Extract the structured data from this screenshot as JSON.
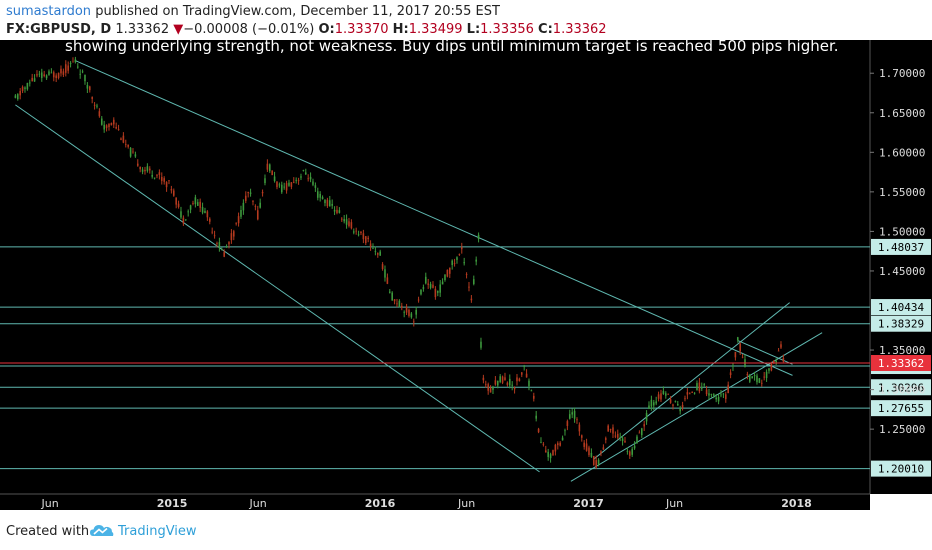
{
  "header": {
    "publisher": "sumastardon",
    "published_text": "published on TradingView.com, December 11, 2017 20:55 EST",
    "symbol": "FX:GBPUSD, D",
    "last": "1.33362",
    "change_arrow": "▼",
    "change": "−0.00008 (−0.01%)",
    "open_label": "O:",
    "open": "1.33370",
    "high_label": "H:",
    "high": "1.33499",
    "low_label": "L:",
    "low": "1.33356",
    "close_label": "C:",
    "close": "1.33362"
  },
  "annotation": "showing underlying strength, not weakness. Buy dips until minimum target is reached 500 pips higher.",
  "footer": {
    "created_with": "Created with",
    "brand": "TradingView",
    "logo_icon": "tradingview-cloud-icon"
  },
  "chart_data": {
    "type": "candlestick",
    "symbol": "FX:GBPUSD",
    "interval": "D",
    "background": "#000000",
    "candle_up_color": "#3d9a3d",
    "candle_down_color": "#b53a1f",
    "line_color": "#5fb8b0",
    "last_price_color": "#e8323c",
    "ylim": [
      1.168,
      1.742
    ],
    "y_ticks": [
      "1.70000",
      "1.65000",
      "1.60000",
      "1.55000",
      "1.50000",
      "1.45000",
      "1.35000",
      "1.30000",
      "1.25000"
    ],
    "x_ticks": [
      "Jun",
      "2015",
      "Jun",
      "2016",
      "Jun",
      "2017",
      "Jun",
      "2018"
    ],
    "horizontal_levels": [
      {
        "value": 1.48037,
        "label": "1.48037"
      },
      {
        "value": 1.40434,
        "label": "1.40434"
      },
      {
        "value": 1.38329,
        "label": "1.38329"
      },
      {
        "value": 1.32981,
        "label": "1.32981"
      },
      {
        "value": 1.30296,
        "label": "1.30296"
      },
      {
        "value": 1.27655,
        "label": "1.27655"
      },
      {
        "value": 1.2001,
        "label": "1.20010"
      }
    ],
    "last_price": {
      "value": 1.33362,
      "label": "1.33362"
    },
    "price_path": [
      [
        "2014-04-01",
        1.667
      ],
      [
        "2014-05-05",
        1.695
      ],
      [
        "2014-06-20",
        1.7
      ],
      [
        "2014-07-15",
        1.716
      ],
      [
        "2014-08-10",
        1.68
      ],
      [
        "2014-09-05",
        1.628
      ],
      [
        "2014-09-20",
        1.64
      ],
      [
        "2014-10-15",
        1.605
      ],
      [
        "2014-11-10",
        1.58
      ],
      [
        "2014-12-10",
        1.57
      ],
      [
        "2015-01-01",
        1.555
      ],
      [
        "2015-01-20",
        1.515
      ],
      [
        "2015-02-10",
        1.54
      ],
      [
        "2015-03-01",
        1.525
      ],
      [
        "2015-04-01",
        1.47
      ],
      [
        "2015-04-20",
        1.5
      ],
      [
        "2015-05-15",
        1.55
      ],
      [
        "2015-06-01",
        1.52
      ],
      [
        "2015-06-18",
        1.585
      ],
      [
        "2015-07-10",
        1.552
      ],
      [
        "2015-08-05",
        1.565
      ],
      [
        "2015-08-25",
        1.575
      ],
      [
        "2015-09-15",
        1.545
      ],
      [
        "2015-10-10",
        1.532
      ],
      [
        "2015-11-05",
        1.51
      ],
      [
        "2015-12-01",
        1.495
      ],
      [
        "2016-01-01",
        1.47
      ],
      [
        "2016-01-20",
        1.42
      ],
      [
        "2016-02-10",
        1.405
      ],
      [
        "2016-03-01",
        1.39
      ],
      [
        "2016-03-20",
        1.44
      ],
      [
        "2016-04-10",
        1.42
      ],
      [
        "2016-05-05",
        1.456
      ],
      [
        "2016-05-25",
        1.476
      ],
      [
        "2016-06-10",
        1.412
      ],
      [
        "2016-06-23",
        1.498
      ],
      [
        "2016-06-27",
        1.32
      ],
      [
        "2016-07-10",
        1.3
      ],
      [
        "2016-08-01",
        1.315
      ],
      [
        "2016-08-25",
        1.305
      ],
      [
        "2016-09-10",
        1.326
      ],
      [
        "2016-09-25",
        1.298
      ],
      [
        "2016-10-07",
        1.238
      ],
      [
        "2016-10-25",
        1.214
      ],
      [
        "2016-11-15",
        1.238
      ],
      [
        "2016-12-05",
        1.274
      ],
      [
        "2016-12-25",
        1.232
      ],
      [
        "2017-01-16",
        1.203
      ],
      [
        "2017-02-05",
        1.25
      ],
      [
        "2017-02-28",
        1.24
      ],
      [
        "2017-03-15",
        1.218
      ],
      [
        "2017-04-05",
        1.248
      ],
      [
        "2017-04-20",
        1.282
      ],
      [
        "2017-05-15",
        1.295
      ],
      [
        "2017-06-10",
        1.275
      ],
      [
        "2017-06-30",
        1.3
      ],
      [
        "2017-07-20",
        1.305
      ],
      [
        "2017-08-15",
        1.287
      ],
      [
        "2017-09-01",
        1.293
      ],
      [
        "2017-09-20",
        1.362
      ],
      [
        "2017-10-10",
        1.315
      ],
      [
        "2017-11-01",
        1.31
      ],
      [
        "2017-11-20",
        1.33
      ],
      [
        "2017-12-05",
        1.355
      ],
      [
        "2017-12-11",
        1.3336
      ]
    ],
    "trendlines": [
      {
        "from": [
          "2014-07-15",
          1.716
        ],
        "to": [
          "2017-12-25",
          1.318
        ]
      },
      {
        "from": [
          "2014-04-01",
          1.66
        ],
        "to": [
          "2016-10-07",
          1.196
        ]
      },
      {
        "from": [
          "2016-12-01",
          1.184
        ],
        "to": [
          "2018-02-15",
          1.372
        ]
      },
      {
        "from": [
          "2017-01-10",
          1.212
        ],
        "to": [
          "2017-12-20",
          1.41
        ]
      },
      {
        "from": [
          "2017-09-20",
          1.362
        ],
        "to": [
          "2017-12-25",
          1.332
        ]
      }
    ]
  }
}
